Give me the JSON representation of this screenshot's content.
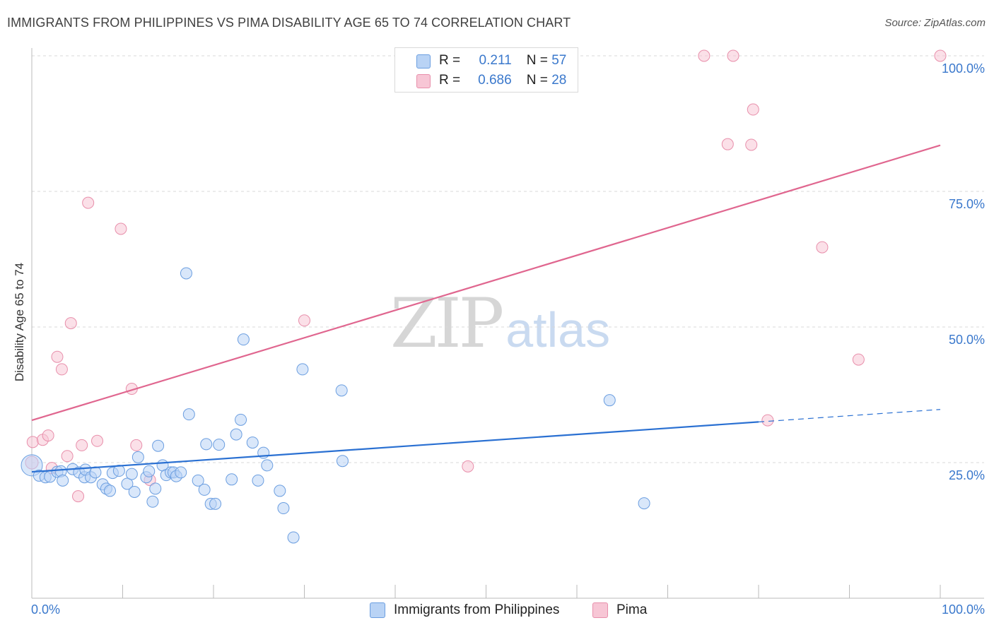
{
  "header": {
    "title": "IMMIGRANTS FROM PHILIPPINES VS PIMA DISABILITY AGE 65 TO 74 CORRELATION CHART",
    "source": "Source: ZipAtlas.com"
  },
  "watermark": {
    "zip": "ZIP",
    "atlas": "atlas"
  },
  "legend": {
    "series1": {
      "r_label": "R =",
      "r_value": "0.211",
      "n_label": "N =",
      "n_value": "57"
    },
    "series2": {
      "r_label": "R =",
      "r_value": "0.686",
      "n_label": "N =",
      "n_value": "28"
    }
  },
  "colors": {
    "blue_fill": "#b9d3f5",
    "blue_stroke": "#6b9ee0",
    "blue_line": "#2a70d2",
    "pink_fill": "#f7c6d5",
    "pink_stroke": "#e88fab",
    "pink_line": "#e0668f",
    "axis_text": "#3a78cc",
    "grid": "#d8d8d8"
  },
  "chart_data": {
    "type": "scatter",
    "title": "IMMIGRANTS FROM PHILIPPINES VS PIMA DISABILITY AGE 65 TO 74 CORRELATION CHART",
    "xlabel": "",
    "ylabel": "Disability Age 65 to 74",
    "xlim": [
      0,
      100
    ],
    "ylim": [
      0,
      100
    ],
    "x_tick_labels": [
      "0.0%",
      "100.0%"
    ],
    "y_tick_labels": [
      "25.0%",
      "50.0%",
      "75.0%",
      "100.0%"
    ],
    "y_ticks": [
      25,
      50,
      75,
      100
    ],
    "grid": true,
    "legend_position": "bottom",
    "series": [
      {
        "name": "Immigrants from Philippines",
        "color": "#6b9ee0",
        "trend": {
          "x": [
            0,
            80
          ],
          "y": [
            23.3,
            32.5
          ],
          "dashed_to": [
            100,
            34.8
          ]
        },
        "points": [
          [
            0,
            24.5
          ],
          [
            0.8,
            22.6
          ],
          [
            1.5,
            22.3
          ],
          [
            2,
            22.4
          ],
          [
            2.8,
            23.3
          ],
          [
            3.2,
            23.4
          ],
          [
            3.4,
            21.7
          ],
          [
            4.5,
            23.8
          ],
          [
            5.2,
            23.2
          ],
          [
            5.8,
            22.3
          ],
          [
            5.9,
            23.7
          ],
          [
            6.5,
            22.3
          ],
          [
            7,
            23.2
          ],
          [
            7.8,
            21.0
          ],
          [
            8.2,
            20.2
          ],
          [
            8.6,
            19.8
          ],
          [
            8.9,
            23.1
          ],
          [
            9.6,
            23.5
          ],
          [
            10.5,
            21.1
          ],
          [
            11,
            22.9
          ],
          [
            11.3,
            19.6
          ],
          [
            11.7,
            26.0
          ],
          [
            12.6,
            22.3
          ],
          [
            12.9,
            23.4
          ],
          [
            13.3,
            17.8
          ],
          [
            13.6,
            20.2
          ],
          [
            13.9,
            28.1
          ],
          [
            14.4,
            24.5
          ],
          [
            14.8,
            22.7
          ],
          [
            15.3,
            23.2
          ],
          [
            15.6,
            23.2
          ],
          [
            15.9,
            22.5
          ],
          [
            16.4,
            23.2
          ],
          [
            17,
            59.9
          ],
          [
            17.3,
            33.9
          ],
          [
            18.3,
            21.7
          ],
          [
            19,
            20.0
          ],
          [
            19.2,
            28.4
          ],
          [
            19.7,
            17.4
          ],
          [
            20.2,
            17.4
          ],
          [
            20.6,
            28.3
          ],
          [
            22,
            21.9
          ],
          [
            22.5,
            30.2
          ],
          [
            23,
            32.9
          ],
          [
            23.3,
            47.7
          ],
          [
            24.3,
            28.7
          ],
          [
            24.9,
            21.7
          ],
          [
            25.5,
            26.8
          ],
          [
            25.9,
            24.5
          ],
          [
            27.3,
            19.8
          ],
          [
            27.7,
            16.6
          ],
          [
            28.8,
            11.2
          ],
          [
            29.8,
            42.2
          ],
          [
            34.1,
            38.3
          ],
          [
            34.2,
            25.3
          ],
          [
            63.6,
            36.5
          ],
          [
            67.4,
            17.5
          ]
        ]
      },
      {
        "name": "Pima",
        "color": "#e88fab",
        "trend": {
          "x": [
            0,
            100
          ],
          "y": [
            32.8,
            83.5
          ]
        },
        "points": [
          [
            0.1,
            28.8
          ],
          [
            1.2,
            29.2
          ],
          [
            1.8,
            30.0
          ],
          [
            2.2,
            24.0
          ],
          [
            2.8,
            44.5
          ],
          [
            3.3,
            42.2
          ],
          [
            3.9,
            26.2
          ],
          [
            4.3,
            50.7
          ],
          [
            5.1,
            18.8
          ],
          [
            5.5,
            28.2
          ],
          [
            6.2,
            72.9
          ],
          [
            7.2,
            29.0
          ],
          [
            9.8,
            68.1
          ],
          [
            11,
            38.6
          ],
          [
            11.5,
            28.2
          ],
          [
            13,
            21.8
          ],
          [
            30,
            51.2
          ],
          [
            48,
            24.3
          ],
          [
            74,
            100
          ],
          [
            77.2,
            100
          ],
          [
            76.6,
            83.7
          ],
          [
            79.4,
            90.1
          ],
          [
            79.2,
            83.6
          ],
          [
            81,
            32.8
          ],
          [
            87,
            64.7
          ],
          [
            91,
            44.0
          ],
          [
            100,
            100
          ],
          [
            0,
            25.0
          ]
        ]
      }
    ]
  },
  "legend_bottom": {
    "series1_label": "Immigrants from Philippines",
    "series2_label": "Pima"
  }
}
